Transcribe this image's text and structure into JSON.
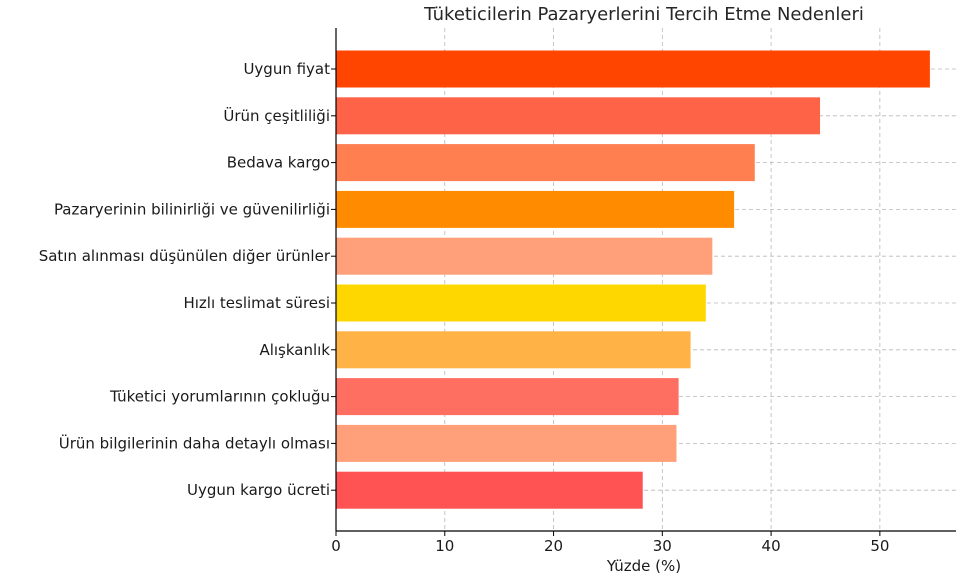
{
  "chart_data": {
    "type": "bar",
    "orientation": "horizontal",
    "title": "Tüketicilerin Pazaryerlerini Tercih Etme Nedenleri",
    "xlabel": "Yüzde (%)",
    "ylabel": "",
    "xlim": [
      0,
      57
    ],
    "xticks": [
      0,
      10,
      20,
      30,
      40,
      50
    ],
    "grid": true,
    "categories": [
      "Uygun fiyat",
      "Ürün çeşitliliği",
      "Bedava kargo",
      "Pazaryerinin bilinirliği ve güvenilirliği",
      "Satın alınması düşünülen diğer ürünler",
      "Hızlı teslimat süresi",
      "Alışkanlık",
      "Tüketici yorumlarının çokluğu",
      "Ürün bilgilerinin daha detaylı olması",
      "Uygun kargo ücreti"
    ],
    "values": [
      54.6,
      44.5,
      38.5,
      36.6,
      34.6,
      34.0,
      32.6,
      31.5,
      31.3,
      28.2
    ],
    "colors": [
      "#FF4500",
      "#FF6347",
      "#FF7F50",
      "#FF8C00",
      "#FFA07A",
      "#FFD700",
      "#FFB347",
      "#FF6F61",
      "#FFA07A",
      "#FF5252"
    ]
  }
}
